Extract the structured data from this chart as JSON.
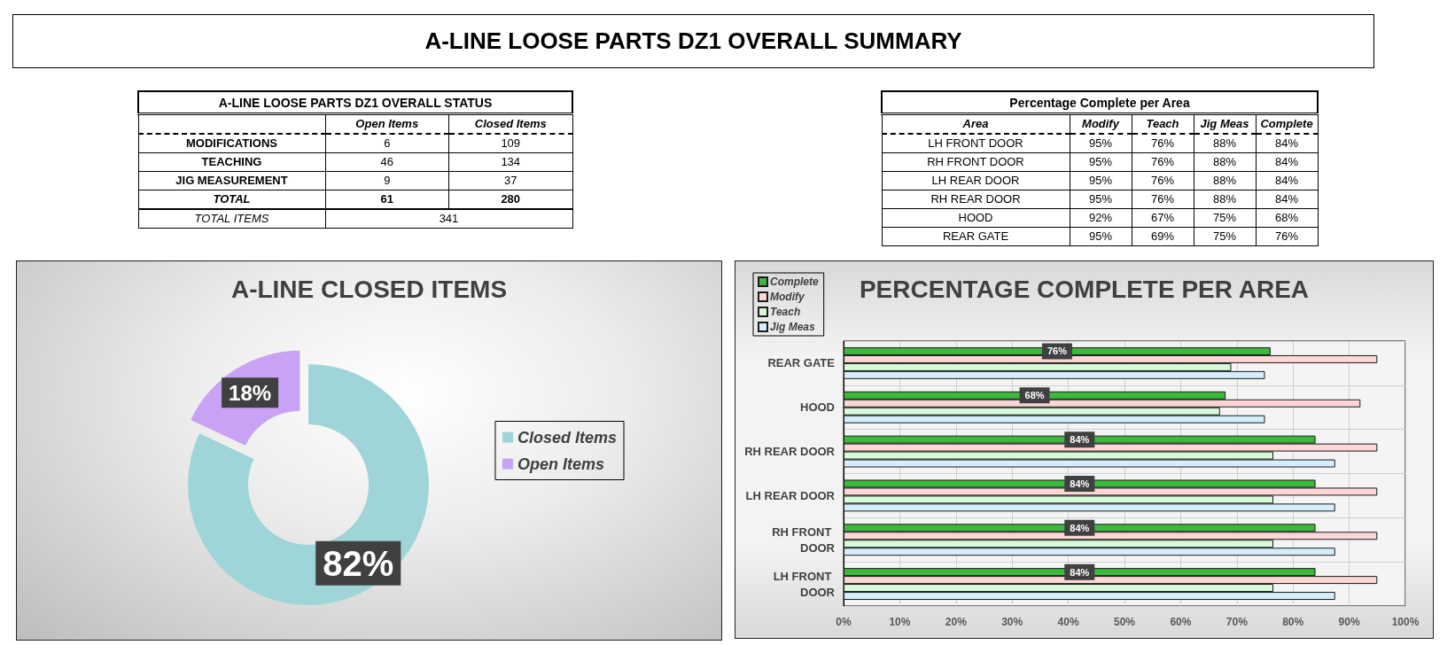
{
  "chart_data": [
    {
      "type": "other",
      "title": "A-LINE LOOSE PARTS DZ1 OVERALL SUMMARY"
    },
    {
      "type": "other",
      "title": "A-LINE LOOSE PARTS DZ1 OVERALL STATUS",
      "categories": [
        "MODIFICATIONS",
        "TEACHING",
        "JIG MEASUREMENT",
        "TOTAL"
      ],
      "series": [
        {
          "name": "Open Items",
          "values": [
            6,
            46,
            9,
            61
          ]
        },
        {
          "name": "Closed Items",
          "values": [
            109,
            134,
            37,
            280
          ]
        }
      ],
      "data_labels": true,
      "annotations": [
        "TOTAL ITEMS",
        "341"
      ]
    },
    {
      "type": "other",
      "title": "Percentage Complete per Area",
      "ylabel": "Area",
      "categories": [
        "LH FRONT DOOR",
        "RH FRONT DOOR",
        "LH REAR DOOR",
        "RH REAR DOOR",
        "HOOD",
        "REAR GATE"
      ],
      "series": [
        {
          "name": "Modify",
          "values": [
            95,
            95,
            95,
            95,
            92,
            95
          ],
          "value_labels": [
            "95%",
            "95%",
            "95%",
            "95%",
            "92%",
            "95%"
          ]
        },
        {
          "name": "Teach",
          "values": [
            76,
            76,
            76,
            76,
            67,
            69
          ],
          "value_labels": [
            "76%",
            "76%",
            "76%",
            "76%",
            "67%",
            "69%"
          ]
        },
        {
          "name": "Jig Meas",
          "values": [
            88,
            88,
            88,
            88,
            75,
            75
          ],
          "value_labels": [
            "88%",
            "88%",
            "88%",
            "88%",
            "75%",
            "75%"
          ]
        },
        {
          "name": "Complete",
          "values": [
            84,
            84,
            84,
            84,
            68,
            76
          ],
          "value_labels": [
            "84%",
            "84%",
            "84%",
            "84%",
            "68%",
            "76%"
          ]
        }
      ]
    },
    {
      "type": "donut",
      "title": "A-LINE CLOSED ITEMS",
      "categories": [
        "Closed Items",
        "Open Items"
      ],
      "values": [
        82,
        18
      ],
      "value_labels": [
        "82%",
        "18%"
      ],
      "colors": [
        "#9fd5d8",
        "#c8a2f4"
      ],
      "legend": "right"
    },
    {
      "type": "bar",
      "orientation": "horizontal",
      "title": "PERCENTAGE COMPLETE PER AREA",
      "categories": [
        "REAR GATE",
        "HOOD",
        "RH REAR DOOR",
        "LH REAR DOOR",
        "RH FRONT DOOR",
        "LH FRONT DOOR"
      ],
      "series": [
        {
          "name": "Complete",
          "color": "#3cb93c",
          "values": [
            76,
            68,
            84,
            84,
            84,
            84
          ],
          "value_labels": [
            "76%",
            "68%",
            "84%",
            "84%",
            "84%",
            "84%"
          ]
        },
        {
          "name": "Modify",
          "color": "#fdd6d6",
          "values": [
            95,
            92,
            95,
            95,
            95,
            95
          ]
        },
        {
          "name": "Teach",
          "color": "#d6fbd6",
          "values": [
            69,
            67,
            76.5,
            76.5,
            76.5,
            76.5
          ]
        },
        {
          "name": "Jig Meas",
          "color": "#d6eefb",
          "values": [
            75,
            75,
            87.5,
            87.5,
            87.5,
            87.5
          ]
        }
      ],
      "xlim": [
        0,
        100
      ],
      "xticks": [
        {
          "value": 0,
          "label": "0%"
        },
        {
          "value": 10,
          "label": "10%"
        },
        {
          "value": 20,
          "label": "20%"
        },
        {
          "value": 30,
          "label": "30%"
        },
        {
          "value": 40,
          "label": "40%"
        },
        {
          "value": 50,
          "label": "50%"
        },
        {
          "value": 60,
          "label": "60%"
        },
        {
          "value": 70,
          "label": "70%"
        },
        {
          "value": 80,
          "label": "80%"
        },
        {
          "value": 90,
          "label": "90%"
        },
        {
          "value": 100,
          "label": "100%"
        }
      ],
      "grid": true,
      "legend": "top left"
    }
  ]
}
